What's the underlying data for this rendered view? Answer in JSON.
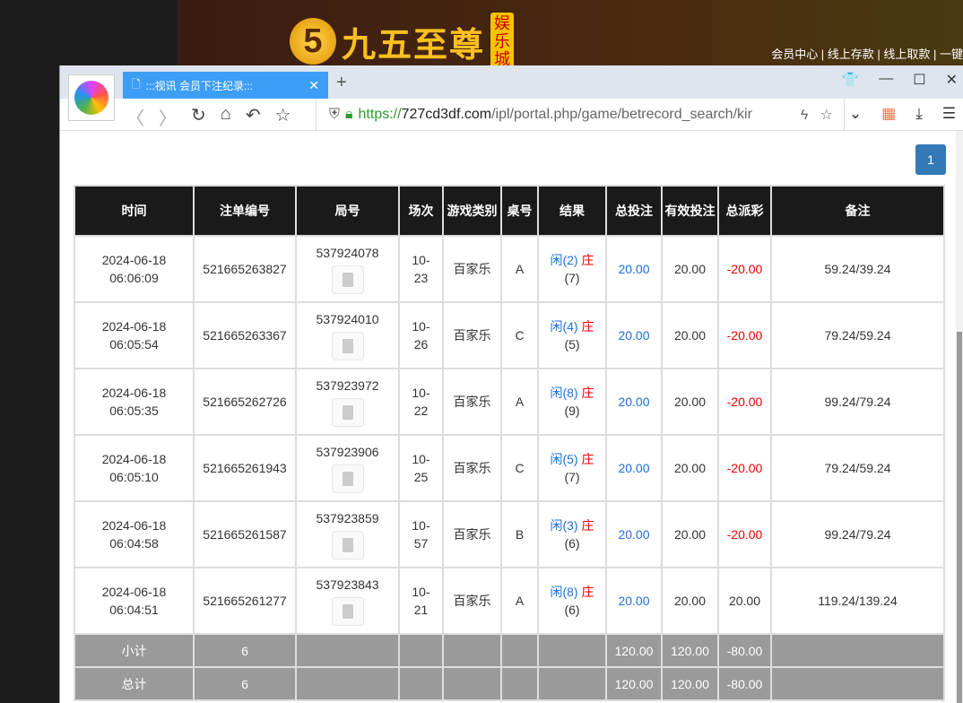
{
  "banner": {
    "logo_mark": "5",
    "logo_name": "九五至尊",
    "logo_tag": "娱乐城",
    "links": "会员中心 | 线上存款 | 线上取款 | 一键"
  },
  "browser": {
    "tab_title": ":::视讯 会员下注纪录:::",
    "url_scheme": "https://",
    "url_host": "727cd3df.com",
    "url_path": "/ipl/portal.php/game/betrecord_search/kir"
  },
  "pagination": {
    "current": "1"
  },
  "table": {
    "headers": [
      "时间",
      "注单编号",
      "局号",
      "场次",
      "游戏类别",
      "桌号",
      "结果",
      "总投注",
      "有效投注",
      "总派彩",
      "备注"
    ],
    "rows": [
      {
        "date": "2024-06-18",
        "time": "06:06:09",
        "bet_id": "521665263827",
        "round": "537924078",
        "session": "10-23",
        "game": "百家乐",
        "table": "A",
        "player": "闲(2)",
        "banker": "庄",
        "banker_pts": "(7)",
        "total": "20.00",
        "valid": "20.00",
        "payout": "-20.00",
        "note": "59.24/39.24"
      },
      {
        "date": "2024-06-18",
        "time": "06:05:54",
        "bet_id": "521665263367",
        "round": "537924010",
        "session": "10-26",
        "game": "百家乐",
        "table": "C",
        "player": "闲(4)",
        "banker": "庄",
        "banker_pts": "(5)",
        "total": "20.00",
        "valid": "20.00",
        "payout": "-20.00",
        "note": "79.24/59.24"
      },
      {
        "date": "2024-06-18",
        "time": "06:05:35",
        "bet_id": "521665262726",
        "round": "537923972",
        "session": "10-22",
        "game": "百家乐",
        "table": "A",
        "player": "闲(8)",
        "banker": "庄",
        "banker_pts": "(9)",
        "total": "20.00",
        "valid": "20.00",
        "payout": "-20.00",
        "note": "99.24/79.24"
      },
      {
        "date": "2024-06-18",
        "time": "06:05:10",
        "bet_id": "521665261943",
        "round": "537923906",
        "session": "10-25",
        "game": "百家乐",
        "table": "C",
        "player": "闲(5)",
        "banker": "庄",
        "banker_pts": "(7)",
        "total": "20.00",
        "valid": "20.00",
        "payout": "-20.00",
        "note": "79.24/59.24"
      },
      {
        "date": "2024-06-18",
        "time": "06:04:58",
        "bet_id": "521665261587",
        "round": "537923859",
        "session": "10-57",
        "game": "百家乐",
        "table": "B",
        "player": "闲(3)",
        "banker": "庄",
        "banker_pts": "(6)",
        "total": "20.00",
        "valid": "20.00",
        "payout": "-20.00",
        "note": "99.24/79.24"
      },
      {
        "date": "2024-06-18",
        "time": "06:04:51",
        "bet_id": "521665261277",
        "round": "537923843",
        "session": "10-21",
        "game": "百家乐",
        "table": "A",
        "player": "闲(8)",
        "banker": "庄",
        "banker_pts": "(6)",
        "total": "20.00",
        "valid": "20.00",
        "payout": "20.00",
        "note": "119.24/139.24"
      }
    ],
    "subtotal": {
      "label": "小计",
      "count": "6",
      "total": "120.00",
      "valid": "120.00",
      "payout": "-80.00"
    },
    "grandtotal": {
      "label": "总计",
      "count": "6",
      "total": "120.00",
      "valid": "120.00",
      "payout": "-80.00"
    }
  },
  "colors": {
    "header_bg": "#1a1a1a",
    "sum_bg": "#9a9a9a",
    "blue": "#1e6fd9",
    "red": "#e00000",
    "page_btn": "#337ab7"
  }
}
